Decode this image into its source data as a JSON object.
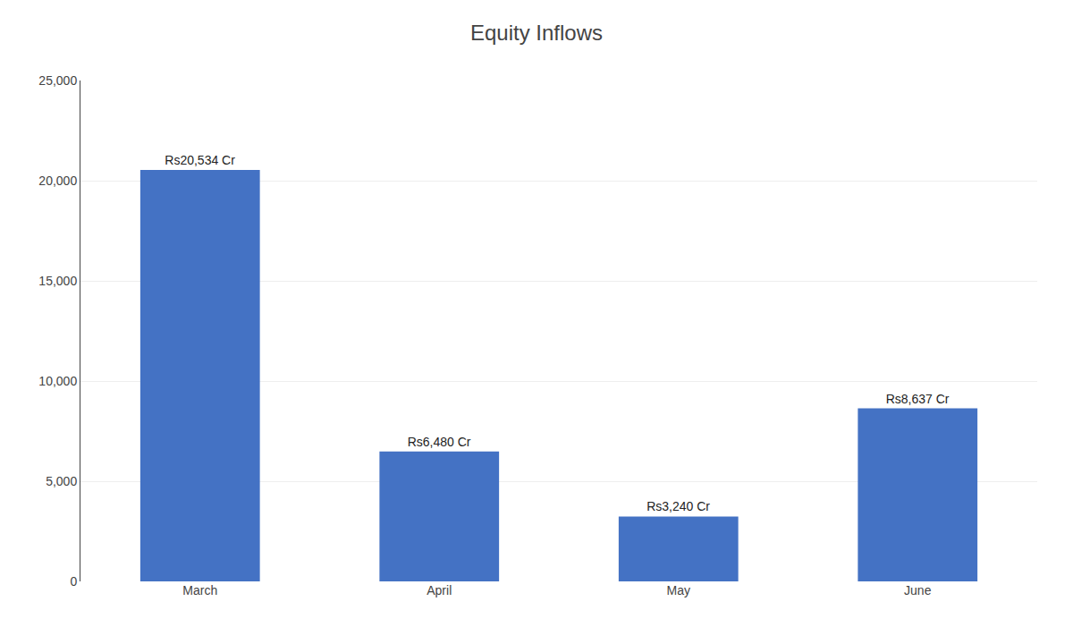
{
  "chart_data": {
    "type": "bar",
    "title": "Equity Inflows",
    "categories": [
      "March",
      "April",
      "May",
      "June"
    ],
    "values": [
      20534,
      6480,
      3240,
      8637
    ],
    "value_labels": [
      "Rs20,534 Cr",
      "Rs6,480 Cr",
      "Rs3,240 Cr",
      "Rs8,637 Cr"
    ],
    "data_labels": true,
    "color": "#4472C4",
    "ylim": [
      0,
      25000
    ],
    "yticks": [
      0,
      {
        "value": 5000,
        "label": "5,000"
      },
      {
        "value": 10000,
        "label": "10,000"
      },
      {
        "value": 15000,
        "label": "15,000"
      },
      {
        "value": 20000,
        "label": "20,000"
      },
      {
        "value": 25000,
        "label": "25,000"
      }
    ],
    "grid": true
  }
}
